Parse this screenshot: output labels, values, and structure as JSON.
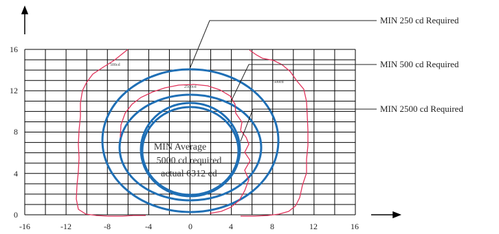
{
  "figure": {
    "x_ticks": [
      "-16",
      "-12",
      "-8",
      "-4",
      "0",
      "4",
      "8",
      "12",
      "16"
    ],
    "y_ticks": [
      "0",
      "4",
      "8",
      "12",
      "16"
    ],
    "callouts": [
      "MIN 250 cd Required",
      "MIN 500 cd Required",
      "MIN 2500 cd Required"
    ],
    "center_label": [
      "MIN Average",
      "5000 cd required",
      "actual 6312 cd"
    ],
    "contour_labels": [
      "500cd",
      "2500cd",
      "500cd"
    ],
    "colors": {
      "circles": "#1f6fb5",
      "contours": "#e0325a",
      "grid": "#000000",
      "text": "#222222"
    }
  }
}
